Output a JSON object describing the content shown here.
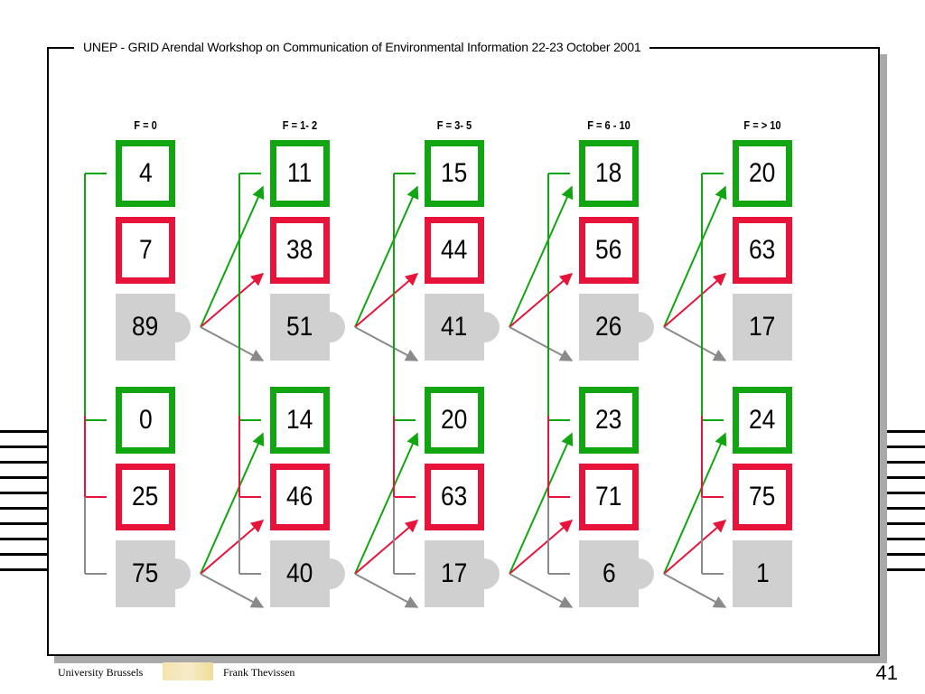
{
  "header": {
    "title": "UNEP - GRID Arendal  Workshop on Communication of Environmental Information 22-23 October 2001"
  },
  "columns": [
    {
      "label": "F = 0",
      "top": [
        4,
        7,
        89
      ],
      "bottom": [
        0,
        25,
        75
      ]
    },
    {
      "label": "F = 1- 2",
      "top": [
        11,
        38,
        51
      ],
      "bottom": [
        14,
        46,
        40
      ]
    },
    {
      "label": "F = 3- 5",
      "top": [
        15,
        44,
        41
      ],
      "bottom": [
        20,
        63,
        17
      ]
    },
    {
      "label": "F = 6 - 10",
      "top": [
        18,
        56,
        26
      ],
      "bottom": [
        23,
        71,
        6
      ]
    },
    {
      "label": "F = > 10",
      "top": [
        20,
        63,
        17
      ],
      "bottom": [
        24,
        75,
        1
      ]
    }
  ],
  "colors": {
    "green": "#11a611",
    "red": "#e8133a",
    "grey": "#d0d0d0",
    "arrow_grey": "#8a8a8a"
  },
  "footer": {
    "institution": "University Brussels",
    "author": "Frank Thevissen",
    "page_number": "41"
  }
}
